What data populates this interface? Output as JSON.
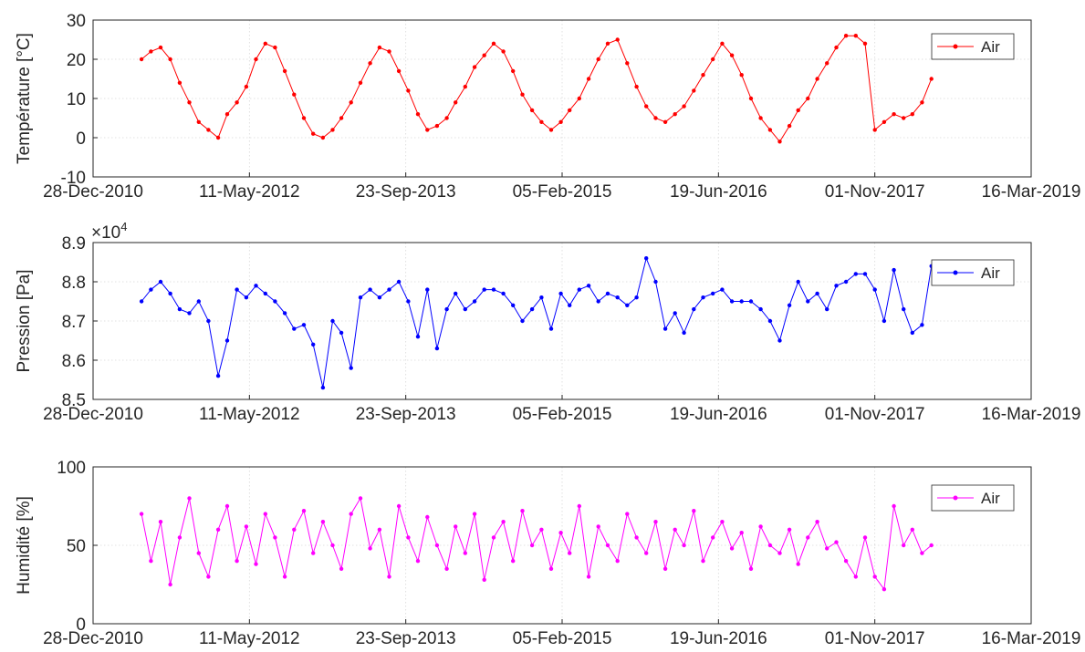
{
  "chart_data": [
    {
      "type": "line",
      "ylabel": "Température [°C]",
      "ylim": [
        -10,
        30
      ],
      "yticks": [
        "-10",
        "0",
        "10",
        "20",
        "30"
      ],
      "xlim": [
        "2010-12-28",
        "2019-03-16"
      ],
      "xticks": [
        "28-Dec-2010",
        "11-May-2012",
        "23-Sep-2013",
        "05-Feb-2015",
        "19-Jun-2016",
        "01-Nov-2017",
        "16-Mar-2019"
      ],
      "grid": true,
      "legend": "top-right",
      "series": [
        {
          "name": "Air",
          "color": "#ff0000",
          "x": [
            "2011-06-01",
            "2011-07-01",
            "2011-08-01",
            "2011-09-01",
            "2011-10-01",
            "2011-11-01",
            "2011-12-01",
            "2012-01-01",
            "2012-02-01",
            "2012-03-01",
            "2012-04-01",
            "2012-05-01",
            "2012-06-01",
            "2012-07-01",
            "2012-08-01",
            "2012-09-01",
            "2012-10-01",
            "2012-11-01",
            "2012-12-01",
            "2013-01-01",
            "2013-02-01",
            "2013-03-01",
            "2013-04-01",
            "2013-05-01",
            "2013-06-01",
            "2013-07-01",
            "2013-08-01",
            "2013-09-01",
            "2013-10-01",
            "2013-11-01",
            "2013-12-01",
            "2014-01-01",
            "2014-02-01",
            "2014-03-01",
            "2014-04-01",
            "2014-05-01",
            "2014-06-01",
            "2014-07-01",
            "2014-08-01",
            "2014-09-01",
            "2014-10-01",
            "2014-11-01",
            "2014-12-01",
            "2015-01-01",
            "2015-02-01",
            "2015-03-01",
            "2015-04-01",
            "2015-05-01",
            "2015-06-01",
            "2015-07-01",
            "2015-08-01",
            "2015-09-01",
            "2015-10-01",
            "2015-11-01",
            "2015-12-01",
            "2016-01-01",
            "2016-02-01",
            "2016-03-01",
            "2016-04-01",
            "2016-05-01",
            "2016-06-01",
            "2016-07-01",
            "2016-08-01",
            "2016-09-01",
            "2016-10-01",
            "2016-11-01",
            "2016-12-01",
            "2017-01-01",
            "2017-02-01",
            "2017-03-01",
            "2017-04-01",
            "2017-05-01",
            "2017-06-01",
            "2017-07-01",
            "2017-08-01",
            "2017-09-01",
            "2017-10-01",
            "2017-11-01",
            "2017-12-01",
            "2018-01-01",
            "2018-02-01",
            "2018-03-01",
            "2018-04-01",
            "2018-05-01"
          ],
          "y": [
            20,
            22,
            23,
            20,
            14,
            9,
            4,
            2,
            0,
            6,
            9,
            13,
            20,
            24,
            23,
            17,
            11,
            5,
            1,
            0,
            2,
            5,
            9,
            14,
            19,
            23,
            22,
            17,
            12,
            6,
            2,
            3,
            5,
            9,
            13,
            18,
            21,
            24,
            22,
            17,
            11,
            7,
            4,
            2,
            4,
            7,
            10,
            15,
            20,
            24,
            25,
            19,
            13,
            8,
            5,
            4,
            6,
            8,
            12,
            16,
            20,
            24,
            21,
            16,
            10,
            5,
            2,
            -1,
            3,
            7,
            10,
            15,
            19,
            23,
            26,
            26,
            24,
            2,
            4,
            6,
            5,
            6,
            9,
            15
          ]
        }
      ]
    },
    {
      "type": "line",
      "ylabel": "Pression [Pa]",
      "ylim": [
        85000,
        89000
      ],
      "yticks": [
        "8.5",
        "8.6",
        "8.7",
        "8.8",
        "8.9"
      ],
      "yexponent": "×10",
      "yexponent_power": "4",
      "xlim": [
        "2010-12-28",
        "2019-03-16"
      ],
      "xticks": [
        "28-Dec-2010",
        "11-May-2012",
        "23-Sep-2013",
        "05-Feb-2015",
        "19-Jun-2016",
        "01-Nov-2017",
        "16-Mar-2019"
      ],
      "grid": true,
      "legend": "top-right",
      "series": [
        {
          "name": "Air",
          "color": "#0000ff",
          "x": [
            "2011-06-01",
            "2011-07-01",
            "2011-08-01",
            "2011-09-01",
            "2011-10-01",
            "2011-11-01",
            "2011-12-01",
            "2012-01-01",
            "2012-02-01",
            "2012-03-01",
            "2012-04-01",
            "2012-05-01",
            "2012-06-01",
            "2012-07-01",
            "2012-08-01",
            "2012-09-01",
            "2012-10-01",
            "2012-11-01",
            "2012-12-01",
            "2013-01-01",
            "2013-02-01",
            "2013-03-01",
            "2013-04-01",
            "2013-05-01",
            "2013-06-01",
            "2013-07-01",
            "2013-08-01",
            "2013-09-01",
            "2013-10-01",
            "2013-11-01",
            "2013-12-01",
            "2014-01-01",
            "2014-02-01",
            "2014-03-01",
            "2014-04-01",
            "2014-05-01",
            "2014-06-01",
            "2014-07-01",
            "2014-08-01",
            "2014-09-01",
            "2014-10-01",
            "2014-11-01",
            "2014-12-01",
            "2015-01-01",
            "2015-02-01",
            "2015-03-01",
            "2015-04-01",
            "2015-05-01",
            "2015-06-01",
            "2015-07-01",
            "2015-08-01",
            "2015-09-01",
            "2015-10-01",
            "2015-11-01",
            "2015-12-01",
            "2016-01-01",
            "2016-02-01",
            "2016-03-01",
            "2016-04-01",
            "2016-05-01",
            "2016-06-01",
            "2016-07-01",
            "2016-08-01",
            "2016-09-01",
            "2016-10-01",
            "2016-11-01",
            "2016-12-01",
            "2017-01-01",
            "2017-02-01",
            "2017-03-01",
            "2017-04-01",
            "2017-05-01",
            "2017-06-01",
            "2017-07-01",
            "2017-08-01",
            "2017-09-01",
            "2017-10-01",
            "2017-11-01",
            "2017-12-01",
            "2018-01-01",
            "2018-02-01",
            "2018-03-01",
            "2018-04-01",
            "2018-05-01"
          ],
          "y": [
            87500,
            87800,
            88000,
            87700,
            87300,
            87200,
            87500,
            87000,
            85600,
            86500,
            87800,
            87600,
            87900,
            87700,
            87500,
            87200,
            86800,
            86900,
            86400,
            85300,
            87000,
            86700,
            85800,
            87600,
            87800,
            87600,
            87800,
            88000,
            87500,
            86600,
            87800,
            86300,
            87300,
            87700,
            87300,
            87500,
            87800,
            87800,
            87700,
            87400,
            87000,
            87300,
            87600,
            86800,
            87700,
            87400,
            87800,
            87900,
            87500,
            87700,
            87600,
            87400,
            87600,
            88600,
            88000,
            86800,
            87200,
            86700,
            87300,
            87600,
            87700,
            87800,
            87500,
            87500,
            87500,
            87300,
            87000,
            86500,
            87400,
            88000,
            87500,
            87700,
            87300,
            87900,
            88000,
            88200,
            88200,
            87800,
            87000,
            88300,
            87300,
            86700,
            86900,
            88400
          ]
        }
      ]
    },
    {
      "type": "line",
      "ylabel": "Humidité [%]",
      "ylim": [
        0,
        100
      ],
      "yticks": [
        "0",
        "50",
        "100"
      ],
      "xlim": [
        "2010-12-28",
        "2019-03-16"
      ],
      "xticks": [
        "28-Dec-2010",
        "11-May-2012",
        "23-Sep-2013",
        "05-Feb-2015",
        "19-Jun-2016",
        "01-Nov-2017",
        "16-Mar-2019"
      ],
      "grid": true,
      "legend": "top-right",
      "series": [
        {
          "name": "Air",
          "color": "#ff00ff",
          "x": [
            "2011-06-01",
            "2011-07-01",
            "2011-08-01",
            "2011-09-01",
            "2011-10-01",
            "2011-11-01",
            "2011-12-01",
            "2012-01-01",
            "2012-02-01",
            "2012-03-01",
            "2012-04-01",
            "2012-05-01",
            "2012-06-01",
            "2012-07-01",
            "2012-08-01",
            "2012-09-01",
            "2012-10-01",
            "2012-11-01",
            "2012-12-01",
            "2013-01-01",
            "2013-02-01",
            "2013-03-01",
            "2013-04-01",
            "2013-05-01",
            "2013-06-01",
            "2013-07-01",
            "2013-08-01",
            "2013-09-01",
            "2013-10-01",
            "2013-11-01",
            "2013-12-01",
            "2014-01-01",
            "2014-02-01",
            "2014-03-01",
            "2014-04-01",
            "2014-05-01",
            "2014-06-01",
            "2014-07-01",
            "2014-08-01",
            "2014-09-01",
            "2014-10-01",
            "2014-11-01",
            "2014-12-01",
            "2015-01-01",
            "2015-02-01",
            "2015-03-01",
            "2015-04-01",
            "2015-05-01",
            "2015-06-01",
            "2015-07-01",
            "2015-08-01",
            "2015-09-01",
            "2015-10-01",
            "2015-11-01",
            "2015-12-01",
            "2016-01-01",
            "2016-02-01",
            "2016-03-01",
            "2016-04-01",
            "2016-05-01",
            "2016-06-01",
            "2016-07-01",
            "2016-08-01",
            "2016-09-01",
            "2016-10-01",
            "2016-11-01",
            "2016-12-01",
            "2017-01-01",
            "2017-02-01",
            "2017-03-01",
            "2017-04-01",
            "2017-05-01",
            "2017-06-01",
            "2017-07-01",
            "2017-08-01",
            "2017-09-01",
            "2017-10-01",
            "2017-11-01",
            "2017-12-01",
            "2018-01-01",
            "2018-02-01",
            "2018-03-01",
            "2018-04-01",
            "2018-05-01"
          ],
          "y": [
            70,
            40,
            65,
            25,
            55,
            80,
            45,
            30,
            60,
            75,
            40,
            62,
            38,
            70,
            55,
            30,
            60,
            72,
            45,
            65,
            50,
            35,
            70,
            80,
            48,
            60,
            30,
            75,
            55,
            40,
            68,
            50,
            35,
            62,
            45,
            70,
            28,
            55,
            65,
            40,
            72,
            50,
            60,
            35,
            58,
            45,
            75,
            30,
            62,
            50,
            40,
            70,
            55,
            45,
            65,
            35,
            60,
            50,
            72,
            40,
            55,
            65,
            48,
            58,
            35,
            62,
            50,
            45,
            60,
            38,
            55,
            65,
            48,
            52,
            40,
            30,
            55,
            30,
            22,
            75,
            50,
            60,
            45,
            50
          ]
        }
      ]
    }
  ]
}
